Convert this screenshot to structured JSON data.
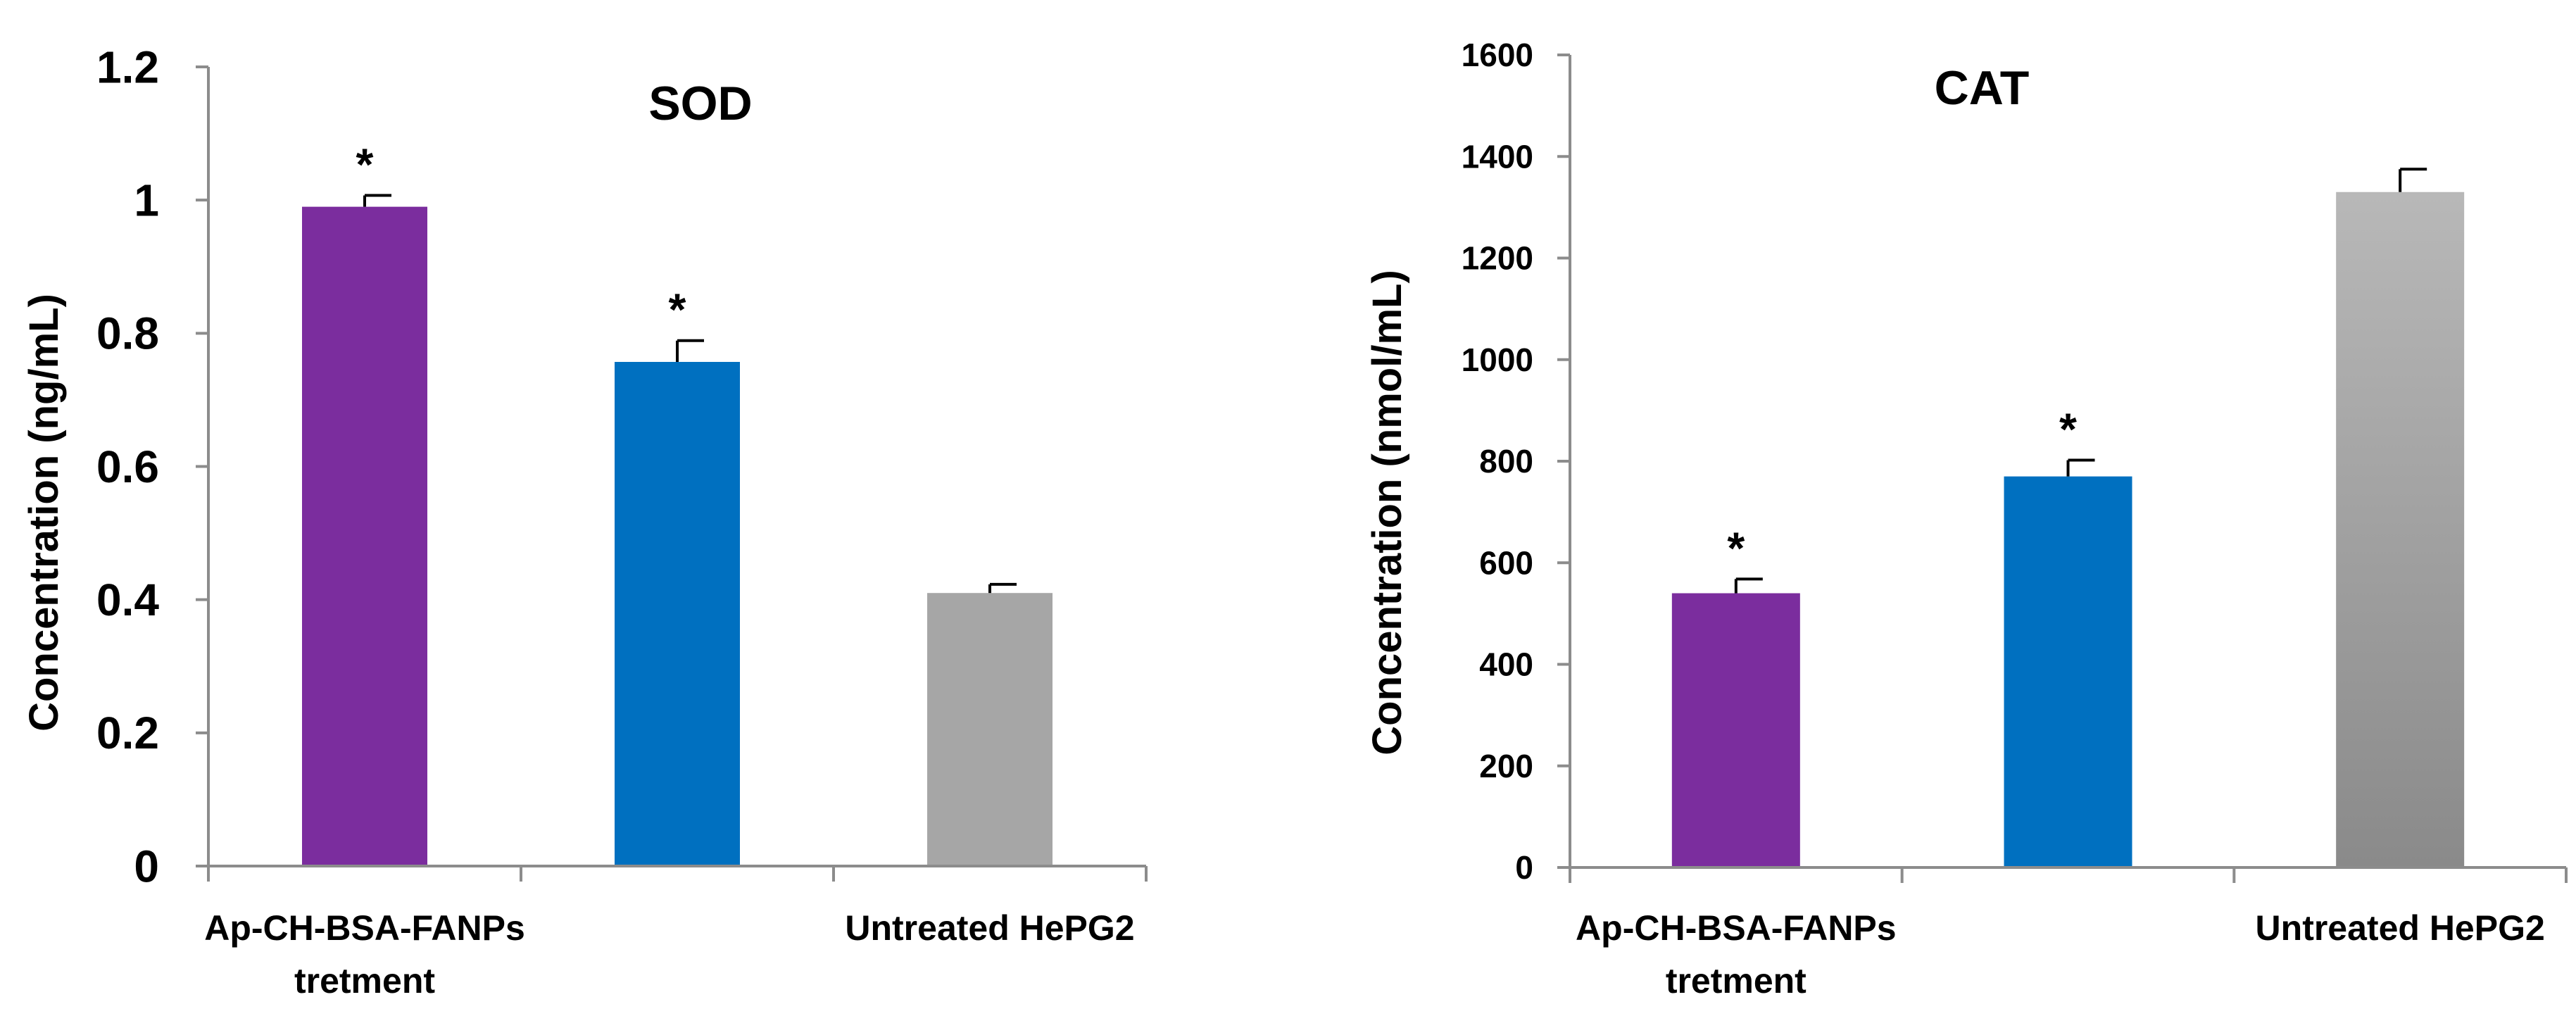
{
  "chart_data": [
    {
      "type": "bar",
      "title": "SOD",
      "xlabel": "",
      "ylabel": "Concentration (ng/mL)",
      "ylim": [
        0,
        1.2
      ],
      "yticks": [
        "0",
        "0.2",
        "0.4",
        "0.6",
        "0.8",
        "1",
        "1.2"
      ],
      "ytick_values": [
        0,
        0.2,
        0.4,
        0.6,
        0.8,
        1,
        1.2
      ],
      "category_labels": [
        [
          "Ap-CH-BSA-FANPs",
          "tretment"
        ],
        [],
        [
          "Untreated HePG2"
        ]
      ],
      "values": [
        0.99,
        0.757,
        0.41
      ],
      "errors": [
        0.017,
        0.032,
        0.013
      ],
      "significance": [
        "*",
        "*",
        ""
      ],
      "colors": [
        "#7B2D9E",
        "#0070C0",
        "#A6A6A6"
      ]
    },
    {
      "type": "bar",
      "title": "CAT",
      "xlabel": "",
      "ylabel": "Concentration (nmol/mL)",
      "ylim": [
        0,
        1600
      ],
      "yticks": [
        "0",
        "200",
        "400",
        "600",
        "800",
        "1000",
        "1200",
        "1400",
        "1600"
      ],
      "ytick_values": [
        0,
        200,
        400,
        600,
        800,
        1000,
        1200,
        1400,
        1600
      ],
      "category_labels": [
        [
          "Ap-CH-BSA-FANPs",
          "tretment"
        ],
        [],
        [
          "Untreated HePG2"
        ]
      ],
      "values": [
        540,
        770,
        1330
      ],
      "errors": [
        28,
        32,
        45
      ],
      "significance": [
        "*",
        "*",
        ""
      ],
      "colors": [
        "#7B2D9E",
        "#0070C0",
        "#999999"
      ]
    }
  ]
}
